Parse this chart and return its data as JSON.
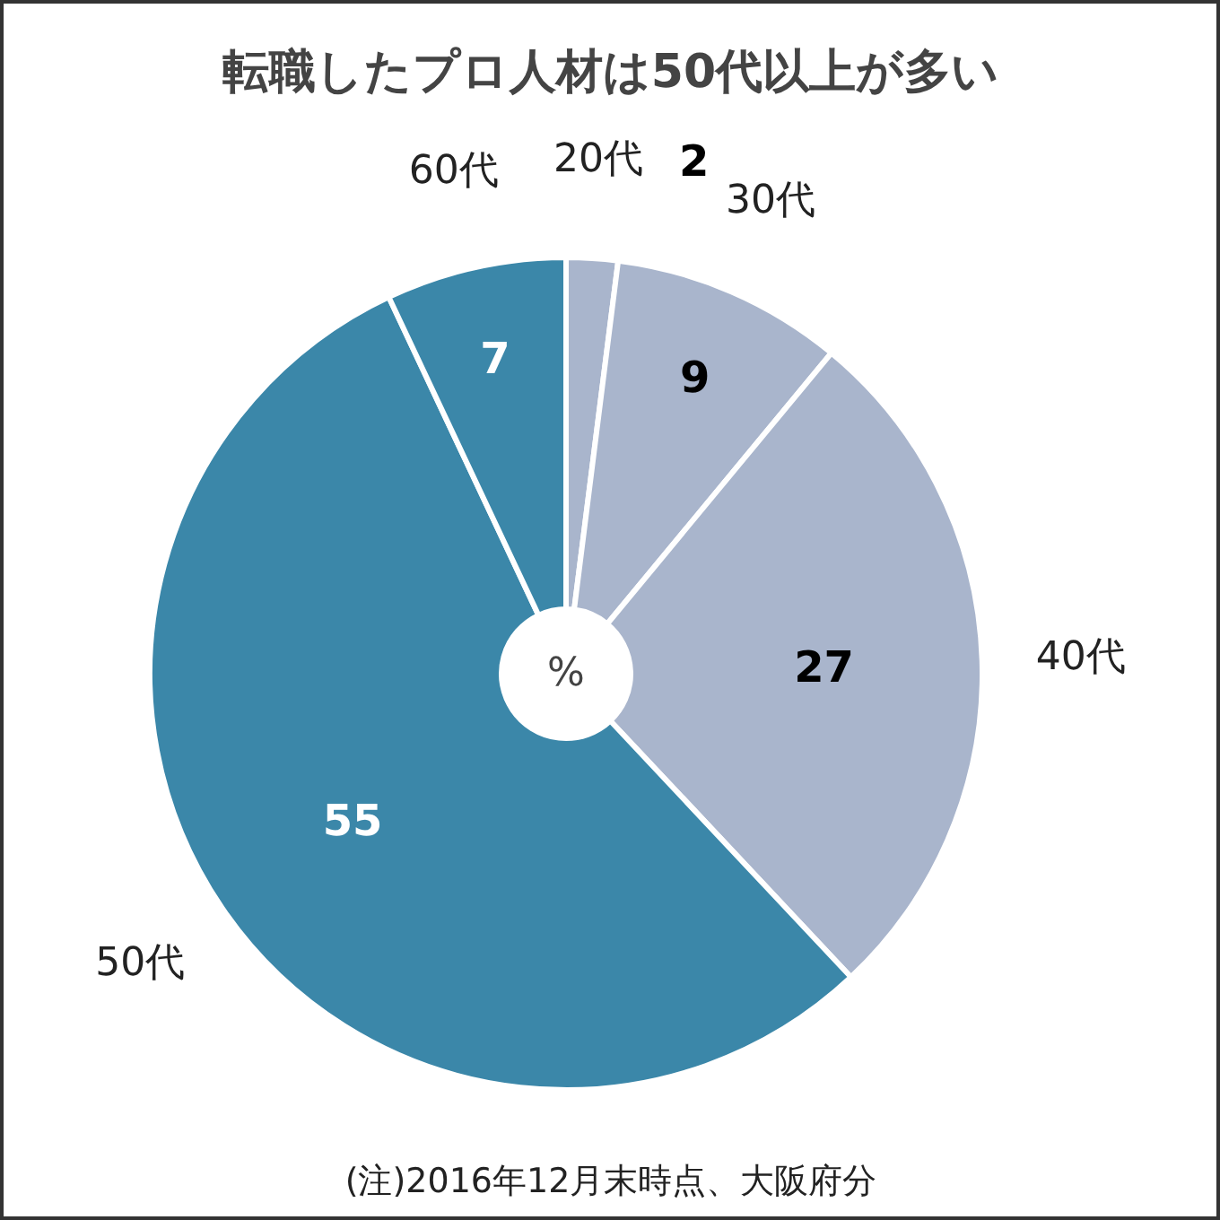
{
  "chart_data": {
    "type": "donut",
    "title": "転職したプロ人材は50代以上が多い",
    "categories": [
      "20代",
      "30代",
      "40代",
      "50代",
      "60代"
    ],
    "values": [
      2,
      9,
      27,
      55,
      7
    ],
    "colors": [
      "#a9b5cc",
      "#a9b5cc",
      "#a9b5cc",
      "#3b87a9",
      "#3b87a9"
    ],
    "data_labels": true,
    "annotations": [
      "%",
      "(注)2016年12月末時点、大阪府分"
    ]
  }
}
